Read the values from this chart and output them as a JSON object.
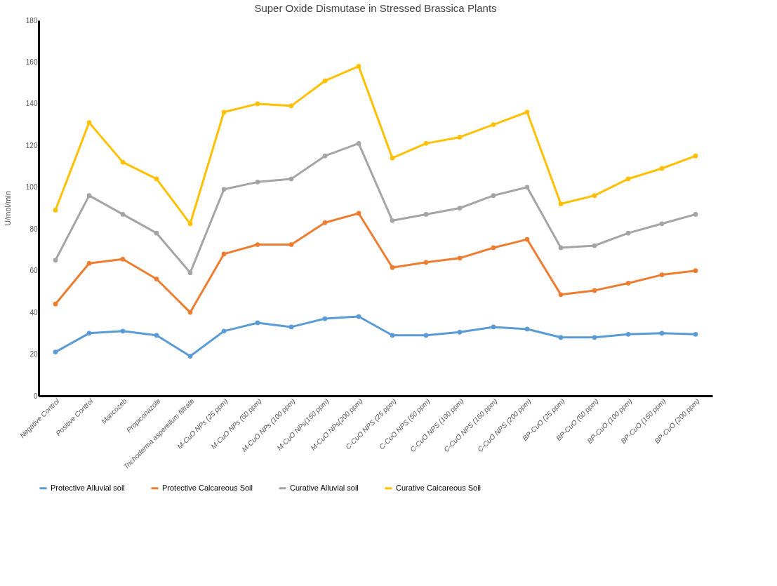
{
  "chart_data": {
    "type": "line",
    "title": "Super Oxide Dismutase in Stressed Brassica Plants",
    "ylabel": "U/mol/min",
    "categories": [
      "Negative Control",
      "Positive Control",
      "Mancozeb",
      "Propiconazole",
      "Trichoderma asperellum filtrate",
      "M-CuO NPs (25 ppm)",
      "M-CuO NPs  (50 ppm)",
      "M-CuO NPs (100 ppm)",
      "M-CuO NPs(150 ppm)",
      "M-CuO NPs(200 ppm)",
      "C-CuO NPS (25 ppm)",
      "C-CuO NPS (50 ppm)",
      "C-CuO NPS (100 ppm)",
      "C-CuO NPS (150 ppm)",
      "C-CuO NPS (200 ppm)",
      "BP-CuO (25 ppm)",
      "BP-CuO (50 ppm)",
      "BP-CuO (100 ppm)",
      "BP-CuO (150 ppm)",
      "BP-CuO (200 ppm)"
    ],
    "series": [
      {
        "name": "Protective Alluvial soil",
        "color": "#5b9bd5",
        "values": [
          21,
          30,
          31,
          29,
          19,
          31,
          35,
          33,
          37,
          38,
          29,
          29,
          30.5,
          33,
          32,
          28,
          28,
          29.5,
          30,
          29.5
        ]
      },
      {
        "name": "Protective Calcareous Soil",
        "color": "#ed7d31",
        "values": [
          44,
          63.5,
          65.5,
          56,
          40,
          68,
          72.5,
          72.5,
          83,
          87.5,
          61.5,
          64,
          66,
          71,
          75,
          48.5,
          50.5,
          54,
          58,
          60
        ]
      },
      {
        "name": "Curative Alluvial soil",
        "color": "#a5a5a5",
        "values": [
          65,
          96,
          87,
          78,
          59,
          99,
          102.5,
          104,
          115,
          121,
          84,
          87,
          90,
          96,
          100,
          71,
          72,
          78,
          82.5,
          87
        ]
      },
      {
        "name": "Curative Calcareous Soil",
        "color": "#ffc000",
        "values": [
          89,
          131,
          112,
          104,
          82.5,
          136,
          140,
          139,
          151,
          158,
          114,
          121,
          124,
          130,
          136,
          92,
          96,
          104,
          109,
          115
        ]
      }
    ],
    "ylim": [
      0,
      180
    ],
    "yticks": [
      0,
      20,
      40,
      60,
      80,
      100,
      120,
      140,
      160,
      180
    ],
    "grid": false,
    "legend": "bottom",
    "marker": "circle",
    "line_style": "solid"
  }
}
